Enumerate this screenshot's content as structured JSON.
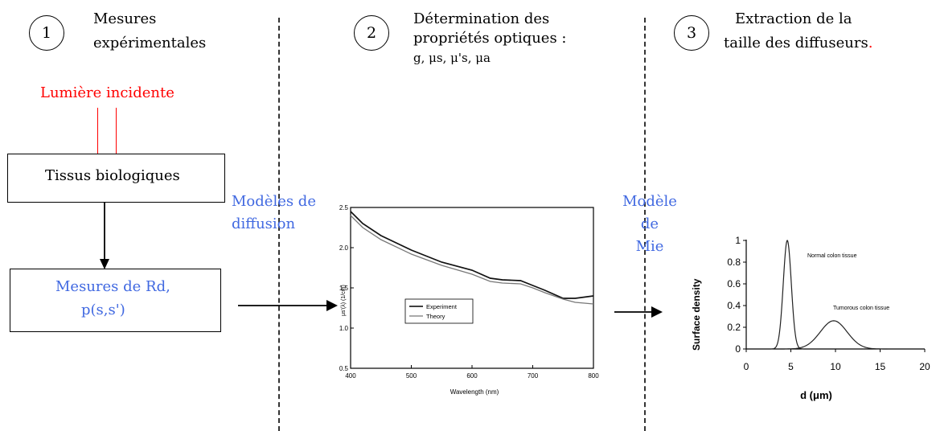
{
  "steps": [
    {
      "number": "1",
      "line1": "Mesures",
      "line2": "expérimentales"
    },
    {
      "number": "2",
      "line1": "Détermination des",
      "line2": "propriétés optiques :",
      "line3": "g, μs, μ's, μa"
    },
    {
      "number": "3",
      "line1": "Extraction de la",
      "line2": "taille des diffuseurs",
      "dot": "."
    }
  ],
  "incident_light": "Lumière incidente",
  "tissue_box": "Tissus biologiques",
  "measures_box": {
    "line1": "Mesures de Rd,",
    "line2": "p(s,s')"
  },
  "model_diffusion": {
    "line1": "Modèles de",
    "line2": "diffusion"
  },
  "model_mie": {
    "line1": "Modèle de",
    "line2": "Mie"
  },
  "chart_data": [
    {
      "type": "line",
      "xlabel": "Wavelength (nm)",
      "ylabel": "μs'(λ)  (1/cm)",
      "xlim": [
        400,
        800
      ],
      "ylim": [
        0.5,
        2.5
      ],
      "xticks": [
        "400",
        "500",
        "600",
        "700",
        "800"
      ],
      "yticks": [
        "0.5",
        "1.0",
        "1.5",
        "2.0",
        "2.5"
      ],
      "series": [
        {
          "name": "Experiment",
          "x": [
            400,
            420,
            450,
            500,
            550,
            600,
            630,
            650,
            680,
            700,
            720,
            750,
            770,
            800
          ],
          "y": [
            2.45,
            2.3,
            2.15,
            1.97,
            1.82,
            1.72,
            1.62,
            1.6,
            1.59,
            1.53,
            1.47,
            1.37,
            1.37,
            1.4
          ]
        },
        {
          "name": "Theory",
          "x": [
            400,
            420,
            450,
            500,
            550,
            600,
            630,
            650,
            680,
            700,
            720,
            750,
            770,
            800
          ],
          "y": [
            2.4,
            2.25,
            2.1,
            1.92,
            1.78,
            1.67,
            1.58,
            1.56,
            1.55,
            1.5,
            1.44,
            1.36,
            1.32,
            1.3
          ]
        }
      ]
    },
    {
      "type": "line",
      "xlabel": "d (μm)",
      "ylabel": "Surface density",
      "xlim": [
        0,
        20
      ],
      "ylim": [
        0,
        1
      ],
      "xticks": [
        "0",
        "5",
        "10",
        "15",
        "20"
      ],
      "yticks": [
        "0",
        "0.2",
        "0.4",
        "0.6",
        "0.8",
        "1"
      ],
      "annotations": [
        "Normal colon tissue",
        "Tumorous colon tissue"
      ],
      "series": [
        {
          "curve": "normal",
          "mu": 4.6,
          "sigma": 0.45,
          "amplitude": 1.0
        },
        {
          "curve": "tumorous",
          "mu": 9.8,
          "sigma": 1.5,
          "amplitude": 0.26
        }
      ]
    }
  ]
}
